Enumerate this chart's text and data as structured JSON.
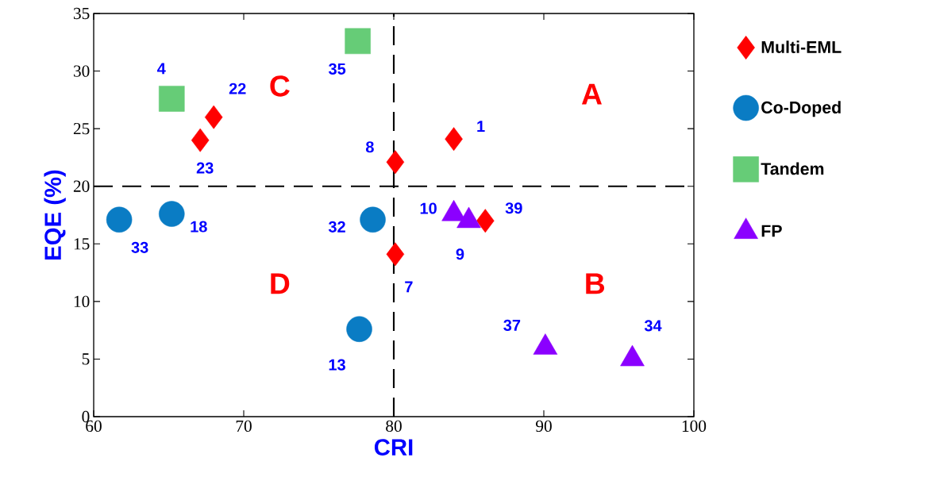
{
  "chart_data": {
    "type": "scatter",
    "xlabel": "CRI",
    "ylabel": "EQE (%)",
    "xlim": [
      60,
      100
    ],
    "ylim": [
      0,
      35
    ],
    "xticks": [
      60,
      70,
      80,
      90,
      100
    ],
    "yticks": [
      0,
      5,
      10,
      15,
      20,
      25,
      30,
      35
    ],
    "grid": false,
    "legend": "right",
    "series": [
      {
        "name": "Multi-EML",
        "color": "#ff0000",
        "marker": "diamond",
        "x": [
          68.0,
          67.1,
          80.1,
          84.0,
          86.1,
          80.1
        ],
        "values": [
          26.0,
          24.0,
          22.1,
          24.1,
          17.0,
          14.1
        ]
      },
      {
        "name": "Co-Doped",
        "color": "#0a7cc4",
        "marker": "circle",
        "x": [
          61.7,
          65.2,
          78.6,
          77.7
        ],
        "values": [
          17.1,
          17.6,
          17.1,
          7.6
        ]
      },
      {
        "name": "Tandem",
        "color": "#66cc77",
        "marker": "square",
        "x": [
          65.2,
          77.6
        ],
        "values": [
          27.6,
          32.6
        ]
      },
      {
        "name": "FP",
        "color": "#8b00ff",
        "marker": "triangle",
        "x": [
          84.0,
          85.0,
          90.1,
          95.9
        ],
        "values": [
          17.6,
          17.0,
          6.0,
          5.0
        ]
      }
    ],
    "ref_lines": [
      {
        "axis": "x",
        "value": 80,
        "color": "#000000",
        "line_style": "dashed"
      },
      {
        "axis": "y",
        "value": 20,
        "color": "#000000",
        "line_style": "dashed"
      }
    ],
    "annotations": [
      "A",
      "B",
      "C",
      "D",
      {
        "text": "4",
        "x": 65.2,
        "y": 27.6
      },
      {
        "text": "22",
        "x": 68.0,
        "y": 26.0
      },
      {
        "text": "23",
        "x": 67.1,
        "y": 24.0
      },
      {
        "text": "35",
        "x": 77.6,
        "y": 32.6
      },
      {
        "text": "8",
        "x": 80.1,
        "y": 22.1
      },
      {
        "text": "1",
        "x": 84.0,
        "y": 24.1
      },
      {
        "text": "10",
        "x": 84.0,
        "y": 17.6
      },
      {
        "text": "39",
        "x": 86.1,
        "y": 17.0
      },
      {
        "text": "9",
        "x": 85.0,
        "y": 17.0
      },
      {
        "text": "32",
        "x": 78.6,
        "y": 17.1
      },
      {
        "text": "7",
        "x": 80.1,
        "y": 14.1
      },
      {
        "text": "33",
        "x": 61.7,
        "y": 17.1
      },
      {
        "text": "18",
        "x": 65.2,
        "y": 17.6
      },
      {
        "text": "13",
        "x": 77.7,
        "y": 7.6
      },
      {
        "text": "37",
        "x": 90.1,
        "y": 6.0
      },
      {
        "text": "34",
        "x": 95.9,
        "y": 5.0
      }
    ]
  }
}
